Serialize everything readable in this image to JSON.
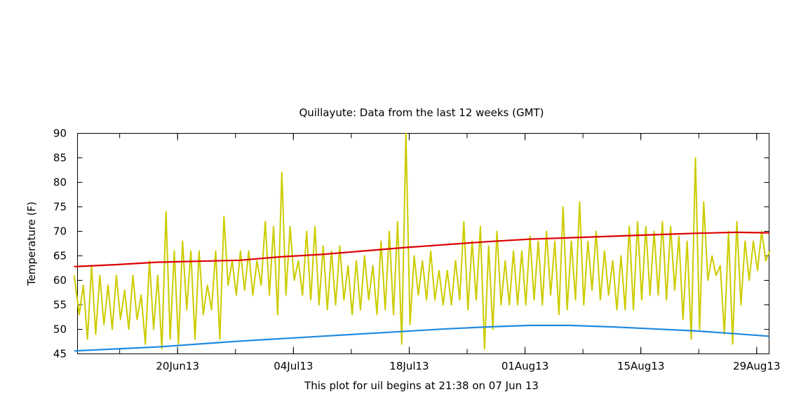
{
  "chart_data": {
    "type": "line",
    "title": "Quillayute:  Data from the last 12 weeks (GMT)",
    "xlabel": "This plot for uil begins at 21:38 on 07 Jun 13",
    "ylabel": "Temperature (F)",
    "x_range": [
      "2013-06-07",
      "2013-08-30"
    ],
    "ylim": [
      45,
      90
    ],
    "y_ticks": [
      45,
      50,
      55,
      60,
      65,
      70,
      75,
      80,
      85,
      90
    ],
    "x_ticks": [
      {
        "label": "20Jun13",
        "date": "2013-06-20"
      },
      {
        "label": "04Jul13",
        "date": "2013-07-04"
      },
      {
        "label": "18Jul13",
        "date": "2013-07-18"
      },
      {
        "label": "01Aug13",
        "date": "2013-08-01"
      },
      {
        "label": "15Aug13",
        "date": "2013-08-15"
      },
      {
        "label": "29Aug13",
        "date": "2013-08-29"
      }
    ],
    "grid": false,
    "series": [
      {
        "color": "#cccc00",
        "points": [
          [
            "2013-06-07",
            61
          ],
          [
            "2013-06-08",
            53
          ],
          [
            "2013-06-08",
            59
          ],
          [
            "2013-06-09",
            48
          ],
          [
            "2013-06-09",
            63
          ],
          [
            "2013-06-10",
            49
          ],
          [
            "2013-06-10",
            61
          ],
          [
            "2013-06-11",
            51
          ],
          [
            "2013-06-11",
            59
          ],
          [
            "2013-06-12",
            50
          ],
          [
            "2013-06-12",
            61
          ],
          [
            "2013-06-13",
            52
          ],
          [
            "2013-06-13",
            58
          ],
          [
            "2013-06-14",
            50
          ],
          [
            "2013-06-14",
            61
          ],
          [
            "2013-06-15",
            52
          ],
          [
            "2013-06-15",
            57
          ],
          [
            "2013-06-16",
            47
          ],
          [
            "2013-06-16",
            64
          ],
          [
            "2013-06-17",
            50
          ],
          [
            "2013-06-17",
            61
          ],
          [
            "2013-06-18",
            46
          ],
          [
            "2013-06-18",
            74
          ],
          [
            "2013-06-19",
            48
          ],
          [
            "2013-06-19",
            66
          ],
          [
            "2013-06-20",
            47
          ],
          [
            "2013-06-20",
            68
          ],
          [
            "2013-06-21",
            54
          ],
          [
            "2013-06-21",
            66
          ],
          [
            "2013-06-22",
            48
          ],
          [
            "2013-06-22",
            66
          ],
          [
            "2013-06-23",
            53
          ],
          [
            "2013-06-23",
            59
          ],
          [
            "2013-06-24",
            54
          ],
          [
            "2013-06-24",
            66
          ],
          [
            "2013-06-25",
            48
          ],
          [
            "2013-06-25",
            73
          ],
          [
            "2013-06-26",
            59
          ],
          [
            "2013-06-26",
            64
          ],
          [
            "2013-06-27",
            57
          ],
          [
            "2013-06-27",
            66
          ],
          [
            "2013-06-28",
            58
          ],
          [
            "2013-06-28",
            66
          ],
          [
            "2013-06-29",
            57
          ],
          [
            "2013-06-29",
            64
          ],
          [
            "2013-06-30",
            59
          ],
          [
            "2013-06-30",
            72
          ],
          [
            "2013-07-01",
            57
          ],
          [
            "2013-07-01",
            71
          ],
          [
            "2013-07-02",
            53
          ],
          [
            "2013-07-02",
            82
          ],
          [
            "2013-07-03",
            57
          ],
          [
            "2013-07-03",
            71
          ],
          [
            "2013-07-04",
            60
          ],
          [
            "2013-07-04",
            64
          ],
          [
            "2013-07-05",
            57
          ],
          [
            "2013-07-05",
            70
          ],
          [
            "2013-07-06",
            56
          ],
          [
            "2013-07-06",
            71
          ],
          [
            "2013-07-07",
            55
          ],
          [
            "2013-07-07",
            67
          ],
          [
            "2013-07-08",
            54
          ],
          [
            "2013-07-08",
            66
          ],
          [
            "2013-07-09",
            55
          ],
          [
            "2013-07-09",
            67
          ],
          [
            "2013-07-10",
            56
          ],
          [
            "2013-07-10",
            63
          ],
          [
            "2013-07-11",
            53
          ],
          [
            "2013-07-11",
            64
          ],
          [
            "2013-07-12",
            54
          ],
          [
            "2013-07-12",
            65
          ],
          [
            "2013-07-13",
            56
          ],
          [
            "2013-07-13",
            63
          ],
          [
            "2013-07-14",
            53
          ],
          [
            "2013-07-14",
            68
          ],
          [
            "2013-07-15",
            54
          ],
          [
            "2013-07-15",
            70
          ],
          [
            "2013-07-16",
            53
          ],
          [
            "2013-07-16",
            72
          ],
          [
            "2013-07-17",
            47
          ],
          [
            "2013-07-17",
            90
          ],
          [
            "2013-07-18",
            51
          ],
          [
            "2013-07-18",
            65
          ],
          [
            "2013-07-19",
            57
          ],
          [
            "2013-07-19",
            64
          ],
          [
            "2013-07-20",
            56
          ],
          [
            "2013-07-20",
            66
          ],
          [
            "2013-07-21",
            56
          ],
          [
            "2013-07-21",
            62
          ],
          [
            "2013-07-22",
            55
          ],
          [
            "2013-07-22",
            62
          ],
          [
            "2013-07-23",
            55
          ],
          [
            "2013-07-23",
            64
          ],
          [
            "2013-07-24",
            56
          ],
          [
            "2013-07-24",
            72
          ],
          [
            "2013-07-25",
            54
          ],
          [
            "2013-07-25",
            68
          ],
          [
            "2013-07-26",
            56
          ],
          [
            "2013-07-26",
            71
          ],
          [
            "2013-07-27",
            46
          ],
          [
            "2013-07-27",
            67
          ],
          [
            "2013-07-28",
            50
          ],
          [
            "2013-07-28",
            70
          ],
          [
            "2013-07-29",
            55
          ],
          [
            "2013-07-29",
            64
          ],
          [
            "2013-07-30",
            55
          ],
          [
            "2013-07-30",
            66
          ],
          [
            "2013-07-31",
            55
          ],
          [
            "2013-07-31",
            66
          ],
          [
            "2013-08-01",
            55
          ],
          [
            "2013-08-01",
            69
          ],
          [
            "2013-08-02",
            56
          ],
          [
            "2013-08-02",
            68
          ],
          [
            "2013-08-03",
            55
          ],
          [
            "2013-08-03",
            70
          ],
          [
            "2013-08-04",
            57
          ],
          [
            "2013-08-04",
            68
          ],
          [
            "2013-08-05",
            53
          ],
          [
            "2013-08-05",
            75
          ],
          [
            "2013-08-06",
            54
          ],
          [
            "2013-08-06",
            68
          ],
          [
            "2013-08-07",
            56
          ],
          [
            "2013-08-07",
            76
          ],
          [
            "2013-08-08",
            55
          ],
          [
            "2013-08-08",
            68
          ],
          [
            "2013-08-09",
            58
          ],
          [
            "2013-08-09",
            70
          ],
          [
            "2013-08-10",
            56
          ],
          [
            "2013-08-10",
            66
          ],
          [
            "2013-08-11",
            57
          ],
          [
            "2013-08-11",
            64
          ],
          [
            "2013-08-12",
            54
          ],
          [
            "2013-08-12",
            65
          ],
          [
            "2013-08-13",
            54
          ],
          [
            "2013-08-13",
            71
          ],
          [
            "2013-08-14",
            54
          ],
          [
            "2013-08-14",
            72
          ],
          [
            "2013-08-15",
            56
          ],
          [
            "2013-08-15",
            71
          ],
          [
            "2013-08-16",
            57
          ],
          [
            "2013-08-16",
            70
          ],
          [
            "2013-08-17",
            57
          ],
          [
            "2013-08-17",
            72
          ],
          [
            "2013-08-18",
            56
          ],
          [
            "2013-08-18",
            71
          ],
          [
            "2013-08-19",
            58
          ],
          [
            "2013-08-19",
            69
          ],
          [
            "2013-08-20",
            52
          ],
          [
            "2013-08-20",
            68
          ],
          [
            "2013-08-21",
            48
          ],
          [
            "2013-08-21",
            85
          ],
          [
            "2013-08-22",
            50
          ],
          [
            "2013-08-22",
            76
          ],
          [
            "2013-08-23",
            60
          ],
          [
            "2013-08-23",
            65
          ],
          [
            "2013-08-24",
            61
          ],
          [
            "2013-08-24",
            63
          ],
          [
            "2013-08-25",
            49
          ],
          [
            "2013-08-25",
            70
          ],
          [
            "2013-08-26",
            47
          ],
          [
            "2013-08-26",
            72
          ],
          [
            "2013-08-27",
            55
          ],
          [
            "2013-08-27",
            68
          ],
          [
            "2013-08-28",
            60
          ],
          [
            "2013-08-28",
            68
          ],
          [
            "2013-08-29",
            62
          ],
          [
            "2013-08-29",
            70
          ],
          [
            "2013-08-30",
            64
          ],
          [
            "2013-08-30",
            66
          ]
        ]
      },
      {
        "color": "#dd0000",
        "points": [
          [
            "2013-06-07",
            62.8
          ],
          [
            "2013-06-12",
            63.2
          ],
          [
            "2013-06-17",
            63.7
          ],
          [
            "2013-06-22",
            63.9
          ],
          [
            "2013-06-27",
            64.1
          ],
          [
            "2013-07-02",
            64.8
          ],
          [
            "2013-07-07",
            65.3
          ],
          [
            "2013-07-12",
            66.0
          ],
          [
            "2013-07-17",
            66.7
          ],
          [
            "2013-07-22",
            67.3
          ],
          [
            "2013-07-27",
            67.9
          ],
          [
            "2013-08-01",
            68.4
          ],
          [
            "2013-08-06",
            68.7
          ],
          [
            "2013-08-11",
            69.0
          ],
          [
            "2013-08-16",
            69.3
          ],
          [
            "2013-08-21",
            69.6
          ],
          [
            "2013-08-26",
            69.8
          ],
          [
            "2013-08-30",
            69.7
          ]
        ]
      },
      {
        "color": "#1e8ae0",
        "points": [
          [
            "2013-06-07",
            45.6
          ],
          [
            "2013-06-12",
            46.0
          ],
          [
            "2013-06-17",
            46.4
          ],
          [
            "2013-06-22",
            47.0
          ],
          [
            "2013-06-27",
            47.6
          ],
          [
            "2013-07-02",
            48.1
          ],
          [
            "2013-07-07",
            48.6
          ],
          [
            "2013-07-12",
            49.1
          ],
          [
            "2013-07-17",
            49.6
          ],
          [
            "2013-07-22",
            50.1
          ],
          [
            "2013-07-27",
            50.5
          ],
          [
            "2013-08-01",
            50.8
          ],
          [
            "2013-08-06",
            50.8
          ],
          [
            "2013-08-11",
            50.5
          ],
          [
            "2013-08-16",
            50.1
          ],
          [
            "2013-08-21",
            49.7
          ],
          [
            "2013-08-26",
            49.1
          ],
          [
            "2013-08-30",
            48.6
          ]
        ]
      }
    ]
  }
}
